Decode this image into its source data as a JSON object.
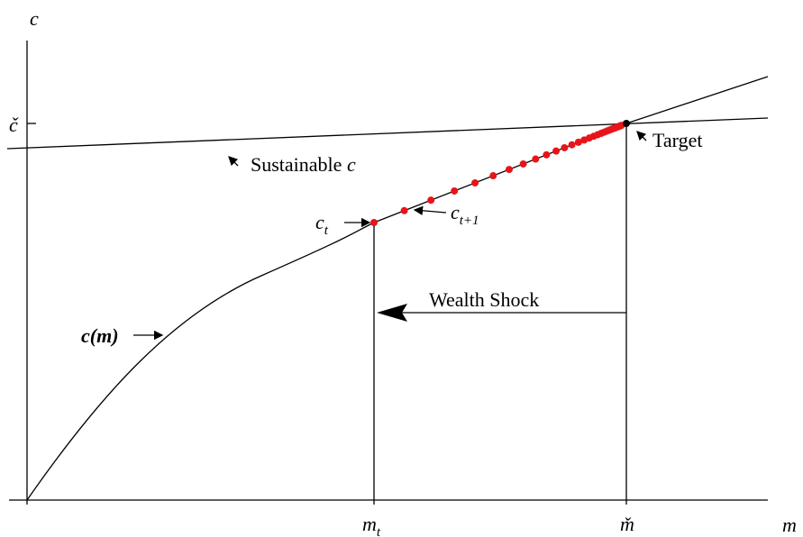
{
  "axes": {
    "y_label": "c",
    "x_label": "m",
    "y_target": "č",
    "x_target": "m̌",
    "x_shock": {
      "base": "m",
      "sub": "t"
    }
  },
  "labels": {
    "c_t": {
      "base": "c",
      "sub": "t"
    },
    "c_t1": {
      "base": "c",
      "sub": "t+1"
    },
    "target": "Target",
    "sustainable": {
      "text": "Sustainable",
      "var": "c"
    },
    "consumption_function": "c(m)",
    "shock": "Wealth Shock"
  }
}
